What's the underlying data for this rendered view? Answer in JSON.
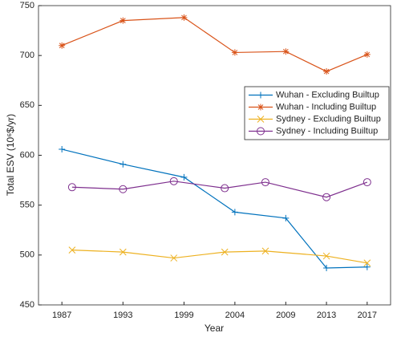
{
  "chart_data": {
    "type": "line",
    "xlabel": "Year",
    "ylabel": "Total ESV (10⁶$/yr)",
    "xlim": [
      1984.7,
      2019.3
    ],
    "xticks": [
      1987,
      1993,
      1999,
      2004,
      2009,
      2013,
      2017
    ],
    "ylim": [
      450,
      750
    ],
    "yticks": [
      450,
      500,
      550,
      600,
      650,
      700,
      750
    ],
    "grid": false,
    "legend": "upper right",
    "series": [
      {
        "name": "Wuhan - Excluding Builtup",
        "color": "#0072bd",
        "marker": "plus",
        "x": [
          1987,
          1993,
          1999,
          2004,
          2009,
          2013,
          2017
        ],
        "values": [
          606,
          591,
          578,
          543,
          537,
          487,
          488
        ]
      },
      {
        "name": "Wuhan - Including Builtup",
        "color": "#d95319",
        "marker": "star",
        "x": [
          1987,
          1993,
          1999,
          2004,
          2009,
          2013,
          2017
        ],
        "values": [
          710,
          735,
          738,
          703,
          704,
          684,
          701
        ]
      },
      {
        "name": "Sydney - Excluding Builtup",
        "color": "#edb120",
        "marker": "x",
        "x": [
          1988,
          1993,
          1998,
          2003,
          2007,
          2013,
          2017
        ],
        "values": [
          505,
          503,
          497,
          503,
          504,
          499,
          492
        ]
      },
      {
        "name": "Sydney - Including Builtup",
        "color": "#7e2f8e",
        "marker": "circle",
        "x": [
          1988,
          1993,
          1998,
          2003,
          2007,
          2013,
          2017
        ],
        "values": [
          568,
          566,
          574,
          567,
          573,
          558,
          573
        ]
      }
    ]
  }
}
